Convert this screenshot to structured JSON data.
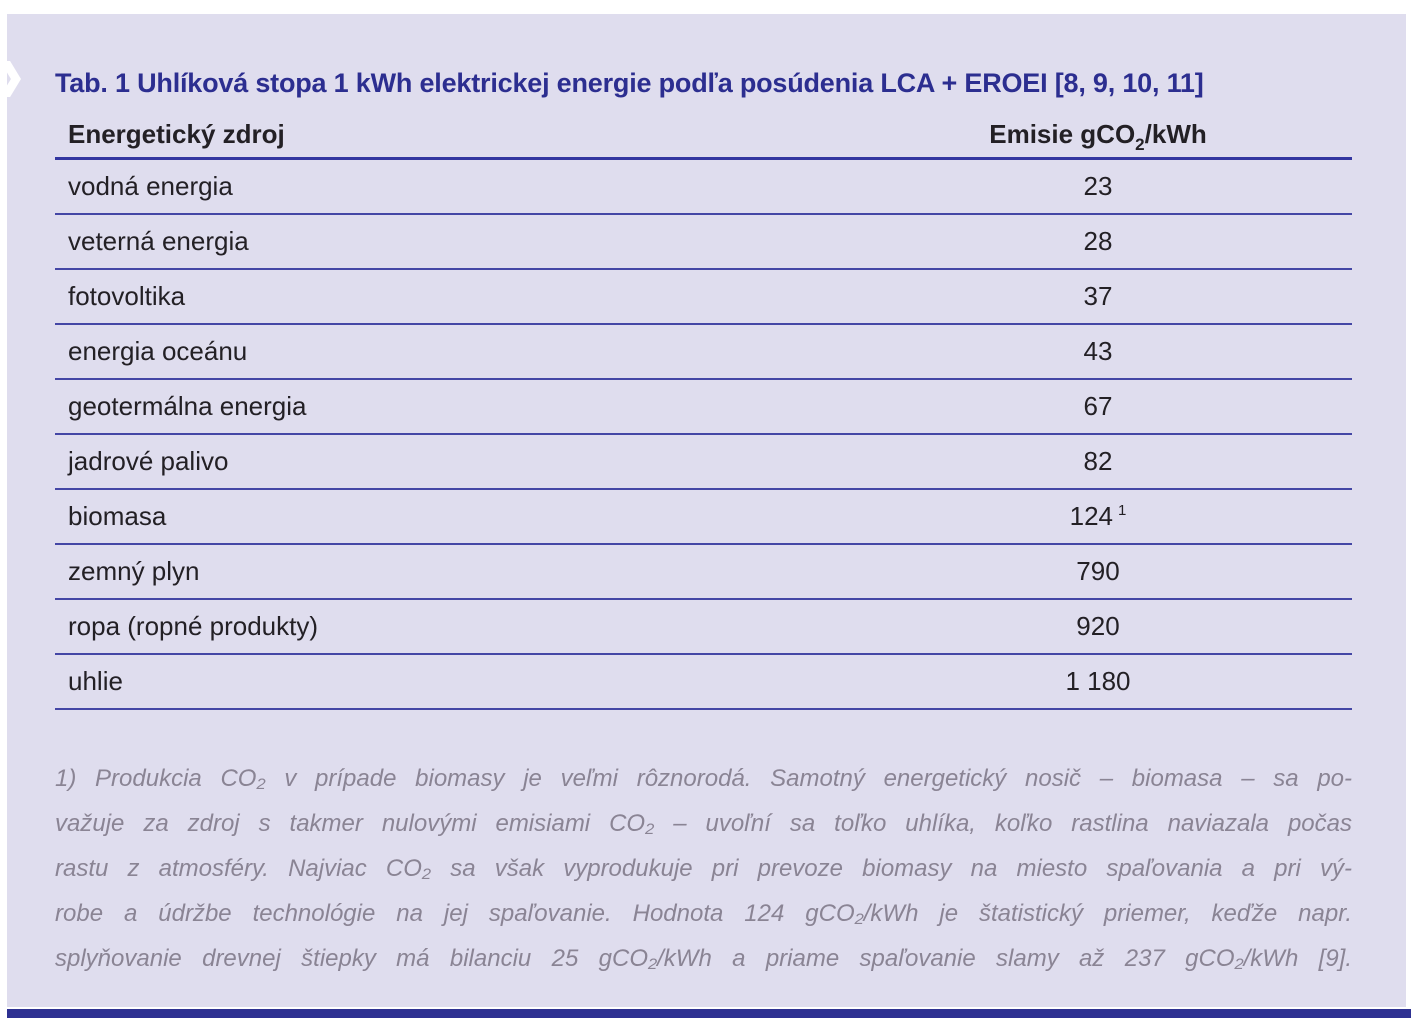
{
  "table_block": {
    "title": "Tab. 1 Uhlíková stopa 1 kWh elektrickej energie podľa posúdenia LCA + EROEI [8, 9, 10, 11]",
    "header": {
      "source_label": "Energetický zdroj",
      "value_label_pre": "Emisie gCO",
      "value_label_sub": "2",
      "value_label_post": "/kWh"
    },
    "rows": [
      {
        "source": "vodná energia",
        "value": "23"
      },
      {
        "source": "veterná energia",
        "value": "28"
      },
      {
        "source": "fotovoltika",
        "value": "37"
      },
      {
        "source": "energia oceánu",
        "value": "43"
      },
      {
        "source": "geotermálna energia",
        "value": "67"
      },
      {
        "source": "jadrové palivo",
        "value": "82"
      },
      {
        "source": "biomasa",
        "value": "124",
        "note_ref": "1"
      },
      {
        "source": "zemný plyn",
        "value": "790"
      },
      {
        "source": "ropa (ropné produkty)",
        "value": "920"
      },
      {
        "source": "uhlie",
        "value": "1 180"
      }
    ],
    "footnote": {
      "lines": [
        "1) Produkcia CO₂ v prípade biomasy je veľmi rôznorodá. Samotný energetický nosič – biomasa – sa po-",
        "važuje za zdroj s takmer nulovými emisiami CO₂ – uvoľní sa toľko uhlíka, koľko rastlina naviazala počas",
        "rastu z atmosféry. Najviac CO₂ sa však vyprodukuje pri prevoze biomasy na miesto spaľovania a pri vý-",
        "robe a údržbe technológie na jej spaľovanie. Hodnota 124 gCO₂/kWh je štatistický priemer, keďže napr.",
        "splyňovanie drevnej štiepky má bilanciu 25 gCO₂/kWh a priame spaľovanie slamy až 237 gCO₂/kWh [9]."
      ]
    }
  },
  "colors": {
    "panel_background": "#dfddee",
    "title_blue": "#2c2e90",
    "rule_indigo": "#4446a5",
    "header_rule_indigo": "#3336a0",
    "body_text": "#232025",
    "footnote_gray": "#8a8494",
    "bottom_bar_navy": "#2e3192"
  }
}
